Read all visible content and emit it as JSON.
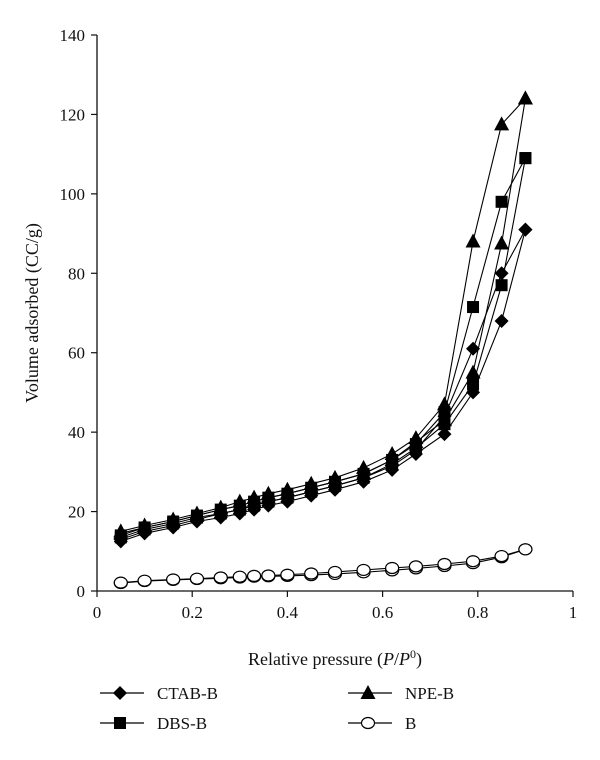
{
  "chart_data": {
    "type": "scatter",
    "xlabel_main": "Relative pressure (",
    "xlabel_var1": "P",
    "xlabel_slash": "/",
    "xlabel_var2": "P",
    "xlabel_sup": "0",
    "xlabel_close": ")",
    "ylabel": "Volume adsorbed (CC/g)",
    "xlim": [
      0,
      1
    ],
    "ylim": [
      0,
      140
    ],
    "x_ticks": [
      0,
      0.2,
      0.4,
      0.6,
      0.8,
      1
    ],
    "x_tick_labels": [
      "0",
      "0.2",
      "0.4",
      "0.6",
      "0.8",
      "1"
    ],
    "y_ticks": [
      0,
      20,
      40,
      60,
      80,
      100,
      120,
      140
    ],
    "y_tick_labels": [
      "0",
      "20",
      "40",
      "60",
      "80",
      "100",
      "120",
      "140"
    ],
    "grid": false,
    "legend_position": "bottom",
    "series": [
      {
        "name": "CTAB-B",
        "marker": "diamond",
        "adsorption": [
          [
            0.05,
            12.5
          ],
          [
            0.1,
            14.5
          ],
          [
            0.16,
            16
          ],
          [
            0.21,
            17.5
          ],
          [
            0.26,
            18.5
          ],
          [
            0.3,
            19.5
          ],
          [
            0.33,
            20.5
          ],
          [
            0.36,
            21.5
          ],
          [
            0.4,
            22.5
          ],
          [
            0.45,
            24
          ],
          [
            0.5,
            25.5
          ],
          [
            0.56,
            27.5
          ],
          [
            0.62,
            30.5
          ],
          [
            0.67,
            34.5
          ],
          [
            0.73,
            39.5
          ],
          [
            0.79,
            50
          ],
          [
            0.85,
            68
          ],
          [
            0.9,
            91
          ]
        ],
        "desorption": [
          [
            0.9,
            91
          ],
          [
            0.85,
            80
          ],
          [
            0.79,
            61
          ],
          [
            0.73,
            44
          ],
          [
            0.67,
            35.5
          ],
          [
            0.62,
            31.5
          ],
          [
            0.56,
            28.5
          ],
          [
            0.5,
            26.5
          ],
          [
            0.45,
            25
          ],
          [
            0.4,
            23.5
          ],
          [
            0.36,
            22.5
          ],
          [
            0.33,
            21.5
          ],
          [
            0.3,
            20.5
          ],
          [
            0.26,
            19.5
          ],
          [
            0.21,
            18
          ],
          [
            0.16,
            16.5
          ],
          [
            0.1,
            15
          ],
          [
            0.05,
            13
          ]
        ]
      },
      {
        "name": "DBS-B",
        "marker": "square",
        "adsorption": [
          [
            0.05,
            13.5
          ],
          [
            0.1,
            15.5
          ],
          [
            0.16,
            17
          ],
          [
            0.21,
            18.5
          ],
          [
            0.26,
            19.5
          ],
          [
            0.3,
            20.5
          ],
          [
            0.33,
            21.5
          ],
          [
            0.36,
            22.5
          ],
          [
            0.4,
            23.5
          ],
          [
            0.45,
            25
          ],
          [
            0.5,
            26.5
          ],
          [
            0.56,
            28.5
          ],
          [
            0.62,
            32
          ],
          [
            0.67,
            36
          ],
          [
            0.73,
            42
          ],
          [
            0.79,
            52
          ],
          [
            0.85,
            77
          ],
          [
            0.9,
            109
          ]
        ],
        "desorption": [
          [
            0.9,
            109
          ],
          [
            0.85,
            98
          ],
          [
            0.79,
            71.5
          ],
          [
            0.73,
            45
          ],
          [
            0.67,
            37
          ],
          [
            0.62,
            33
          ],
          [
            0.56,
            29.5
          ],
          [
            0.5,
            27.5
          ],
          [
            0.45,
            26
          ],
          [
            0.4,
            24.5
          ],
          [
            0.36,
            23.5
          ],
          [
            0.33,
            22.5
          ],
          [
            0.3,
            21.5
          ],
          [
            0.26,
            20.5
          ],
          [
            0.21,
            19
          ],
          [
            0.16,
            17.5
          ],
          [
            0.1,
            16
          ],
          [
            0.05,
            14
          ]
        ]
      },
      {
        "name": "NPE-B",
        "marker": "triangle",
        "adsorption": [
          [
            0.05,
            14.5
          ],
          [
            0.1,
            16
          ],
          [
            0.16,
            17.5
          ],
          [
            0.21,
            19
          ],
          [
            0.26,
            20.5
          ],
          [
            0.3,
            21.5
          ],
          [
            0.33,
            22.5
          ],
          [
            0.36,
            23.5
          ],
          [
            0.4,
            24.5
          ],
          [
            0.45,
            26
          ],
          [
            0.5,
            27.5
          ],
          [
            0.56,
            29.5
          ],
          [
            0.62,
            33
          ],
          [
            0.67,
            37.5
          ],
          [
            0.73,
            43
          ],
          [
            0.79,
            55
          ],
          [
            0.85,
            87.5
          ],
          [
            0.9,
            124
          ]
        ],
        "desorption": [
          [
            0.9,
            124
          ],
          [
            0.85,
            117.5
          ],
          [
            0.79,
            88
          ],
          [
            0.73,
            47
          ],
          [
            0.67,
            38.5
          ],
          [
            0.62,
            34.5
          ],
          [
            0.56,
            31
          ],
          [
            0.5,
            28.5
          ],
          [
            0.45,
            27
          ],
          [
            0.4,
            25.5
          ],
          [
            0.36,
            24.5
          ],
          [
            0.33,
            23.5
          ],
          [
            0.3,
            22.5
          ],
          [
            0.26,
            21
          ],
          [
            0.21,
            19.5
          ],
          [
            0.16,
            18
          ],
          [
            0.1,
            16.5
          ],
          [
            0.05,
            15
          ]
        ]
      },
      {
        "name": "B",
        "marker": "circle-open",
        "adsorption": [
          [
            0.05,
            2
          ],
          [
            0.1,
            2.5
          ],
          [
            0.16,
            2.8
          ],
          [
            0.21,
            3
          ],
          [
            0.26,
            3.2
          ],
          [
            0.3,
            3.4
          ],
          [
            0.33,
            3.6
          ],
          [
            0.36,
            3.7
          ],
          [
            0.4,
            3.8
          ],
          [
            0.45,
            4
          ],
          [
            0.5,
            4.3
          ],
          [
            0.56,
            4.7
          ],
          [
            0.62,
            5.2
          ],
          [
            0.67,
            5.7
          ],
          [
            0.73,
            6.3
          ],
          [
            0.79,
            7
          ],
          [
            0.85,
            8.5
          ],
          [
            0.9,
            10.5
          ]
        ],
        "desorption": [
          [
            0.9,
            10.5
          ],
          [
            0.85,
            8.8
          ],
          [
            0.79,
            7.5
          ],
          [
            0.73,
            6.8
          ],
          [
            0.67,
            6.2
          ],
          [
            0.62,
            5.8
          ],
          [
            0.56,
            5.3
          ],
          [
            0.5,
            4.8
          ],
          [
            0.45,
            4.4
          ],
          [
            0.4,
            4.1
          ],
          [
            0.36,
            3.9
          ],
          [
            0.33,
            3.8
          ],
          [
            0.3,
            3.6
          ],
          [
            0.26,
            3.4
          ],
          [
            0.21,
            3.1
          ],
          [
            0.16,
            2.9
          ],
          [
            0.1,
            2.6
          ],
          [
            0.05,
            2.1
          ]
        ]
      }
    ]
  }
}
